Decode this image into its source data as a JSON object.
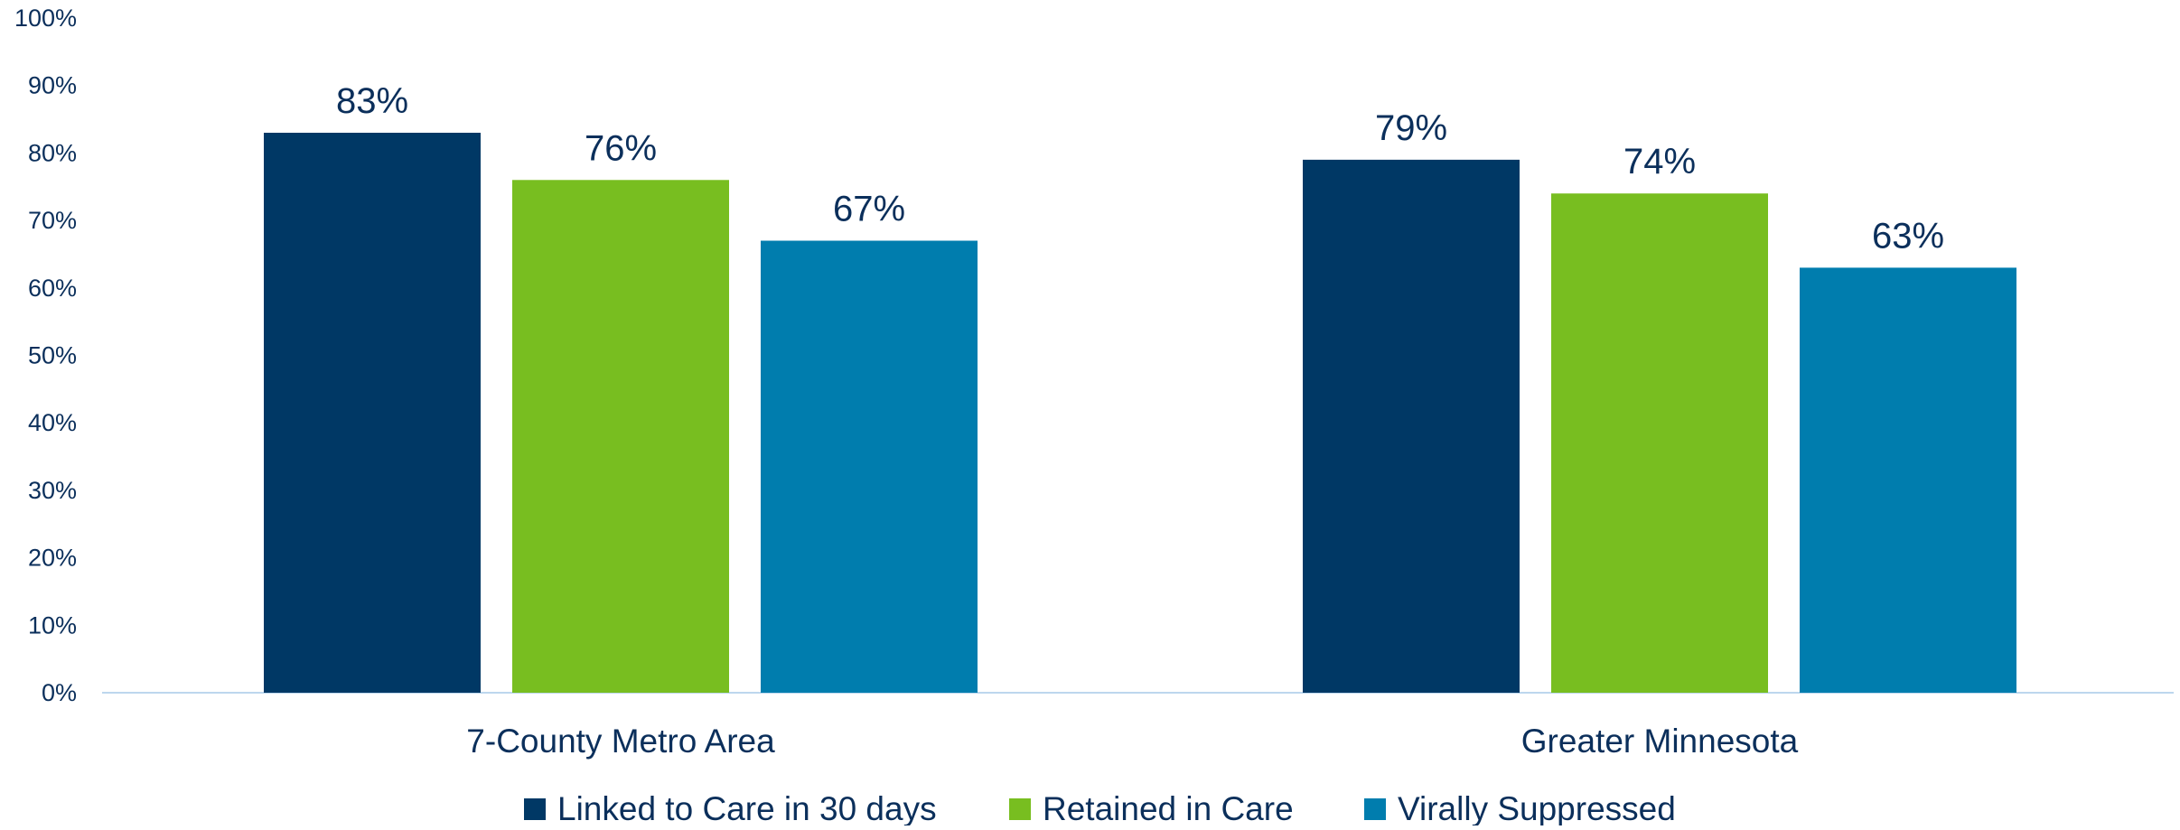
{
  "chart_data": {
    "type": "bar",
    "title": "",
    "xlabel": "",
    "ylabel": "",
    "categories": [
      "7-County Metro Area",
      "Greater Minnesota"
    ],
    "series": [
      {
        "name": "Linked to Care in 30 days",
        "values": [
          83,
          79
        ],
        "labels": [
          "83%",
          "79%"
        ],
        "color": "#003865"
      },
      {
        "name": "Retained in Care",
        "values": [
          76,
          74
        ],
        "labels": [
          "76%",
          "74%"
        ],
        "color": "#78be20"
      },
      {
        "name": "Virally Suppressed",
        "values": [
          67,
          63
        ],
        "labels": [
          "67%",
          "63%"
        ],
        "color": "#007dae"
      }
    ],
    "y_ticks": [
      0,
      10,
      20,
      30,
      40,
      50,
      60,
      70,
      80,
      90,
      100
    ],
    "y_tick_labels": [
      "0%",
      "10%",
      "20%",
      "30%",
      "40%",
      "50%",
      "60%",
      "70%",
      "80%",
      "90%",
      "100%"
    ],
    "ylim": [
      0,
      100
    ],
    "grid": false,
    "legend_position": "bottom",
    "axis_color": "#bdd7ee",
    "text_color": "#0b2f5b"
  }
}
